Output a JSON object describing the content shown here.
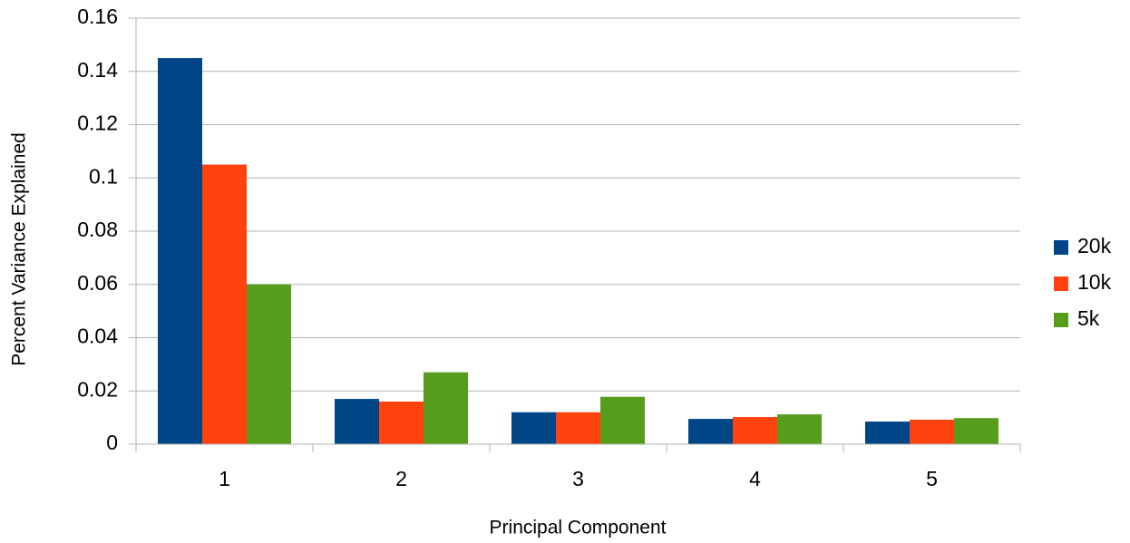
{
  "chart_data": {
    "type": "bar",
    "x_label": "Principal Component",
    "y_label": "Percent Variance Explained",
    "categories": [
      "1",
      "2",
      "3",
      "4",
      "5"
    ],
    "series": [
      {
        "name": "20k",
        "color": "#004586",
        "values": [
          0.145,
          0.017,
          0.012,
          0.0095,
          0.0085
        ]
      },
      {
        "name": "10k",
        "color": "#ff420e",
        "values": [
          0.105,
          0.016,
          0.012,
          0.0102,
          0.0092
        ]
      },
      {
        "name": "5k",
        "color": "#579d1c",
        "values": [
          0.06,
          0.027,
          0.0178,
          0.0112,
          0.0098
        ]
      }
    ],
    "ylim": [
      0,
      0.16
    ],
    "yticks": [
      0,
      0.02,
      0.04,
      0.06,
      0.08,
      0.1,
      0.12,
      0.14,
      0.16
    ],
    "grid": true,
    "legend": "right"
  }
}
